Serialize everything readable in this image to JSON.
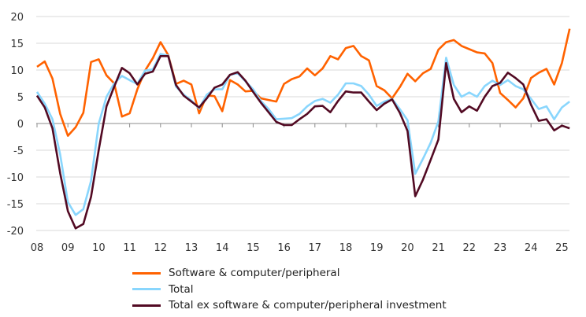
{
  "chart_data": {
    "type": "line",
    "title": "",
    "xlabel": "",
    "ylabel": "",
    "ylim": [
      -20,
      20
    ],
    "yticks": [
      "20",
      "15",
      "10",
      "5",
      "0",
      "-5",
      "-10",
      "-15",
      "-20"
    ],
    "xticks": [
      "08",
      "09",
      "10",
      "11",
      "12",
      "13",
      "14",
      "15",
      "16",
      "17",
      "18",
      "19",
      "20",
      "21",
      "22",
      "23",
      "24",
      "25"
    ],
    "x_frequency": "quarterly, 2008 Q1 to 2025 Q2",
    "grid": true,
    "legend_position": "bottom",
    "series": [
      {
        "name": "Software & computer/peripheral",
        "color": "#FF6200",
        "values": [
          10.6,
          11.6,
          8.4,
          1.8,
          -2.3,
          -0.7,
          2.0,
          11.5,
          12.0,
          9.0,
          7.5,
          1.3,
          1.9,
          6.4,
          9.9,
          12.2,
          15.2,
          12.8,
          7.4,
          8.0,
          7.3,
          1.9,
          5.3,
          5.1,
          2.3,
          8.1,
          7.3,
          6.0,
          6.1,
          4.7,
          4.4,
          4.1,
          7.4,
          8.3,
          8.8,
          10.3,
          9.0,
          10.3,
          12.6,
          12.0,
          14.1,
          14.5,
          12.6,
          11.8,
          7.0,
          6.2,
          4.7,
          6.8,
          9.3,
          7.9,
          9.4,
          10.2,
          13.8,
          15.2,
          15.6,
          14.5,
          13.9,
          13.3,
          13.1,
          11.3,
          5.7,
          4.4,
          3.0,
          4.7,
          8.5,
          9.5,
          10.2,
          7.3,
          11.3,
          17.7
        ]
      },
      {
        "name": "Total",
        "color": "#89D6FD",
        "values": [
          5.9,
          3.7,
          0.8,
          -5.8,
          -14.7,
          -17.1,
          -16.0,
          -10.7,
          0.0,
          5.0,
          7.5,
          8.9,
          8.1,
          7.4,
          9.9,
          10.1,
          13.0,
          12.7,
          6.9,
          5.4,
          4.3,
          2.8,
          5.4,
          6.4,
          6.4,
          9.1,
          9.4,
          7.9,
          6.4,
          4.2,
          2.7,
          0.8,
          0.9,
          1.0,
          1.8,
          3.2,
          4.2,
          4.6,
          3.9,
          5.4,
          7.5,
          7.5,
          7.0,
          5.4,
          3.3,
          4.1,
          4.6,
          2.7,
          0.6,
          -9.4,
          -6.6,
          -3.6,
          0.4,
          12.3,
          7.2,
          5.0,
          5.8,
          5.0,
          7.0,
          8.0,
          7.2,
          8.1,
          7.0,
          6.4,
          4.6,
          2.7,
          3.2,
          0.8,
          3.0,
          4.1
        ]
      },
      {
        "name": "Total ex software & computer/peripheral investment",
        "color": "#520A23",
        "values": [
          5.2,
          3.0,
          -0.9,
          -9.3,
          -16.4,
          -19.6,
          -18.8,
          -13.7,
          -4.9,
          3.2,
          6.9,
          10.4,
          9.4,
          7.3,
          9.3,
          9.7,
          12.6,
          12.6,
          7.2,
          5.2,
          4.1,
          3.0,
          4.7,
          6.7,
          7.3,
          9.1,
          9.6,
          8.0,
          5.9,
          3.9,
          2.1,
          0.3,
          -0.3,
          -0.3,
          0.8,
          1.8,
          3.2,
          3.3,
          2.1,
          4.2,
          6.0,
          5.8,
          5.8,
          4.1,
          2.5,
          3.7,
          4.5,
          2.0,
          -1.4,
          -13.6,
          -10.5,
          -6.8,
          -3.0,
          11.3,
          4.6,
          2.1,
          3.2,
          2.4,
          5.0,
          7.0,
          7.6,
          9.5,
          8.5,
          7.3,
          3.5,
          0.5,
          0.8,
          -1.3,
          -0.4,
          -0.9
        ]
      }
    ]
  }
}
